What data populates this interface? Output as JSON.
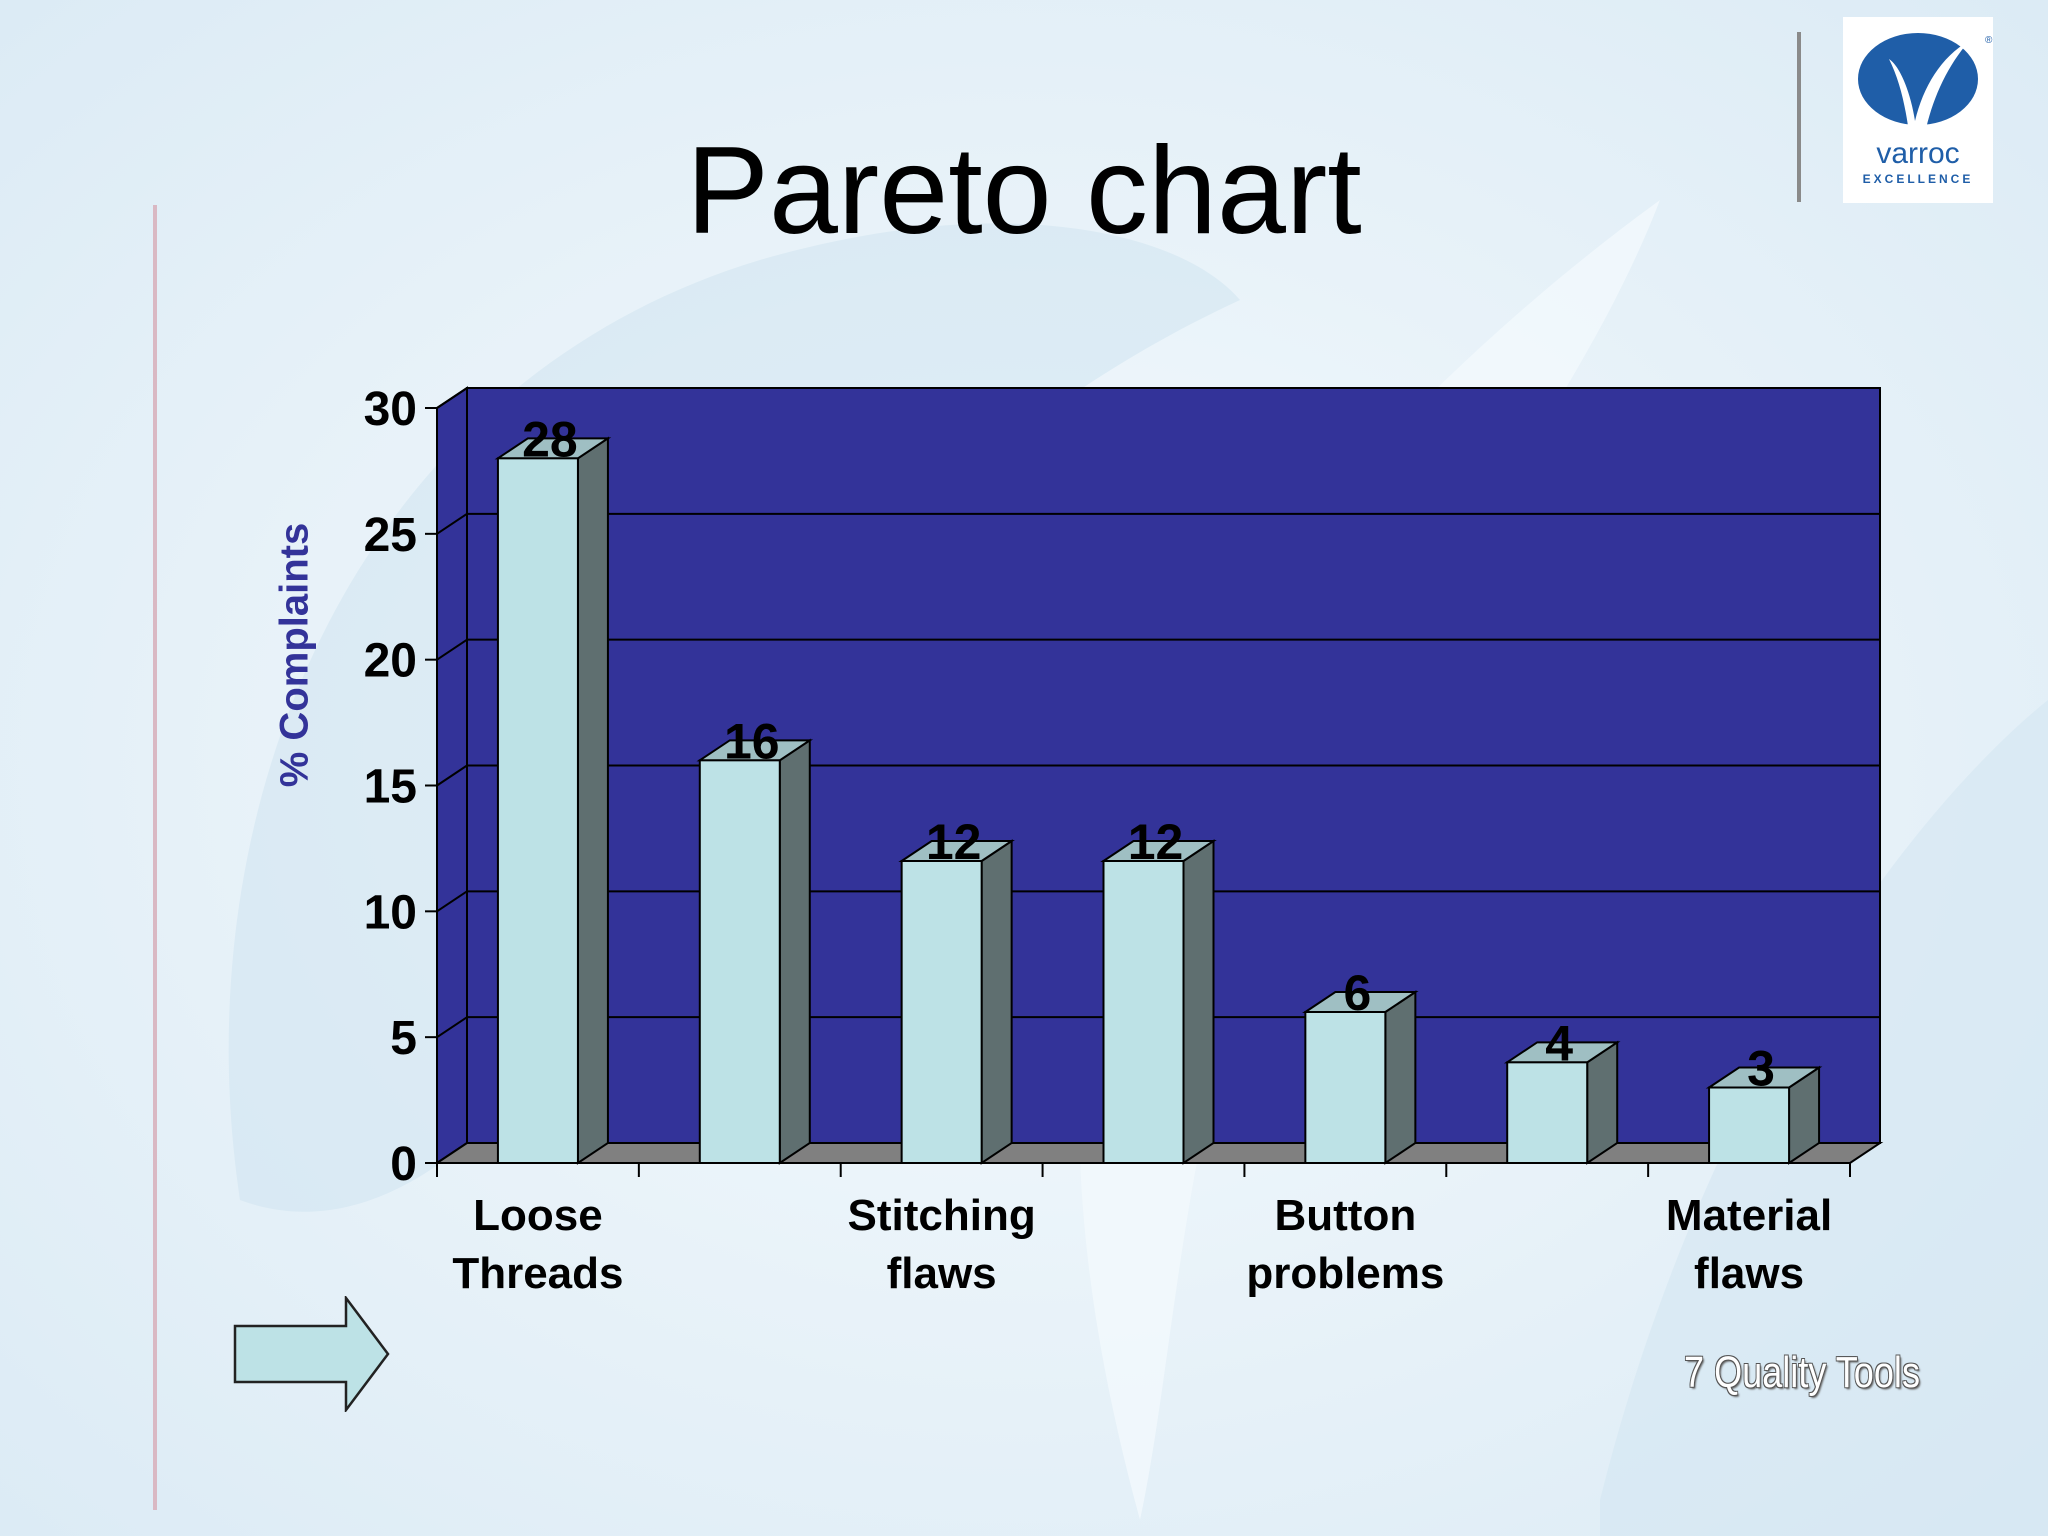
{
  "slide": {
    "title": "Pareto chart",
    "footer": "7 Quality Tools",
    "logo": {
      "brand": "varroc",
      "tagline": "EXCELLENCE",
      "mark": "®"
    },
    "nav_icon": "right-arrow-icon"
  },
  "colors": {
    "plot_bg": "#333399",
    "bar_front": "#bde2e6",
    "bar_side": "#5f6f70",
    "bar_top": "#9fbfc3",
    "floor": "#808080",
    "axis_label": "#333399",
    "logo_blue": "#1f5ea8"
  },
  "chart_data": {
    "type": "bar",
    "categories": [
      "Loose Threads",
      "",
      "Stitching flaws",
      "",
      "Button problems",
      "",
      "Material flaws"
    ],
    "category_labels": [
      {
        "index": 0,
        "lines": [
          "Loose",
          "Threads"
        ]
      },
      {
        "index": 2,
        "lines": [
          "Stitching",
          "flaws"
        ]
      },
      {
        "index": 4,
        "lines": [
          "Button",
          "problems"
        ]
      },
      {
        "index": 6,
        "lines": [
          "Material",
          "flaws"
        ]
      }
    ],
    "values": [
      28,
      16,
      12,
      12,
      6,
      4,
      3
    ],
    "data_labels": [
      "28",
      "16",
      "12",
      "12",
      "6",
      "4",
      "3"
    ],
    "ylabel": "% Complaints",
    "ylim": [
      0,
      30
    ],
    "yticks": [
      0,
      5,
      10,
      15,
      20,
      25,
      30
    ],
    "ytick_labels": [
      "0",
      "5",
      "10",
      "15",
      "20",
      "25",
      "30"
    ],
    "grid": true,
    "legend": false
  }
}
